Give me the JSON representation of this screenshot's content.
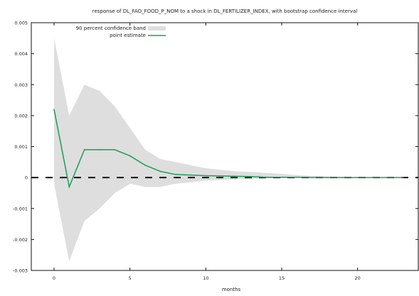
{
  "chart_data": {
    "type": "line",
    "title": "response of DL_FAO_FOOD_P_NOM to a shock in DL_FERTILIZER_INDEX, with bootstrap confidence interval",
    "xlabel": "months",
    "ylabel": "",
    "xlim": [
      -1.5,
      24
    ],
    "ylim": [
      -0.003,
      0.005
    ],
    "x_ticks": [
      0,
      5,
      10,
      15,
      20
    ],
    "x_tick_labels": [
      "0",
      "5",
      "10",
      "15",
      "20"
    ],
    "y_ticks": [
      -0.003,
      -0.002,
      -0.001,
      0,
      0.001,
      0.002,
      0.003,
      0.004,
      0.005
    ],
    "y_tick_labels": [
      "-0.003",
      "-0.002",
      "-0.001",
      "0",
      "0.001",
      "0.002",
      "0.003",
      "0.004",
      "0.005"
    ],
    "grid": false,
    "legend_position": "top-left",
    "zero_line": 0,
    "series": [
      {
        "name": "point estimate",
        "color": "#1a9e5a",
        "x": [
          0,
          1,
          2,
          3,
          4,
          5,
          6,
          7,
          8,
          9,
          10,
          11,
          12,
          13,
          14,
          15,
          16,
          17,
          18,
          19,
          20,
          21,
          22,
          23
        ],
        "values": [
          0.0022,
          -0.0003,
          0.0009,
          0.0009,
          0.0009,
          0.0007,
          0.0004,
          0.0002,
          0.0001,
          8e-05,
          6e-05,
          5e-05,
          4e-05,
          3e-05,
          1e-05,
          1e-05,
          1e-05,
          0.0,
          0.0,
          0.0,
          0.0,
          0.0,
          0.0,
          0.0
        ]
      }
    ],
    "band": {
      "name": "90 percent confidence band",
      "color": "#dedede",
      "x": [
        0,
        1,
        2,
        3,
        4,
        5,
        6,
        7,
        8,
        9,
        10,
        11,
        12,
        13,
        14,
        15,
        16,
        17,
        18,
        19,
        20,
        21,
        22,
        23
      ],
      "upper": [
        0.0045,
        0.002,
        0.003,
        0.0028,
        0.0023,
        0.0016,
        0.0009,
        0.0006,
        0.0005,
        0.0004,
        0.0003,
        0.00025,
        0.0002,
        0.00018,
        0.00015,
        0.00012,
        8e-05,
        5e-05,
        3e-05,
        2e-05,
        1e-05,
        1e-05,
        0.0,
        0.0
      ],
      "lower": [
        -0.0002,
        -0.0027,
        -0.0014,
        -0.001,
        -0.0005,
        -0.0002,
        -0.0003,
        -0.0003,
        -0.0002,
        -0.00015,
        -0.0001,
        -8e-05,
        -5e-05,
        -4e-05,
        -3e-05,
        -2e-05,
        -1e-05,
        0.0,
        0.0,
        0.0,
        0.0,
        0.0,
        0.0,
        0.0
      ]
    }
  }
}
